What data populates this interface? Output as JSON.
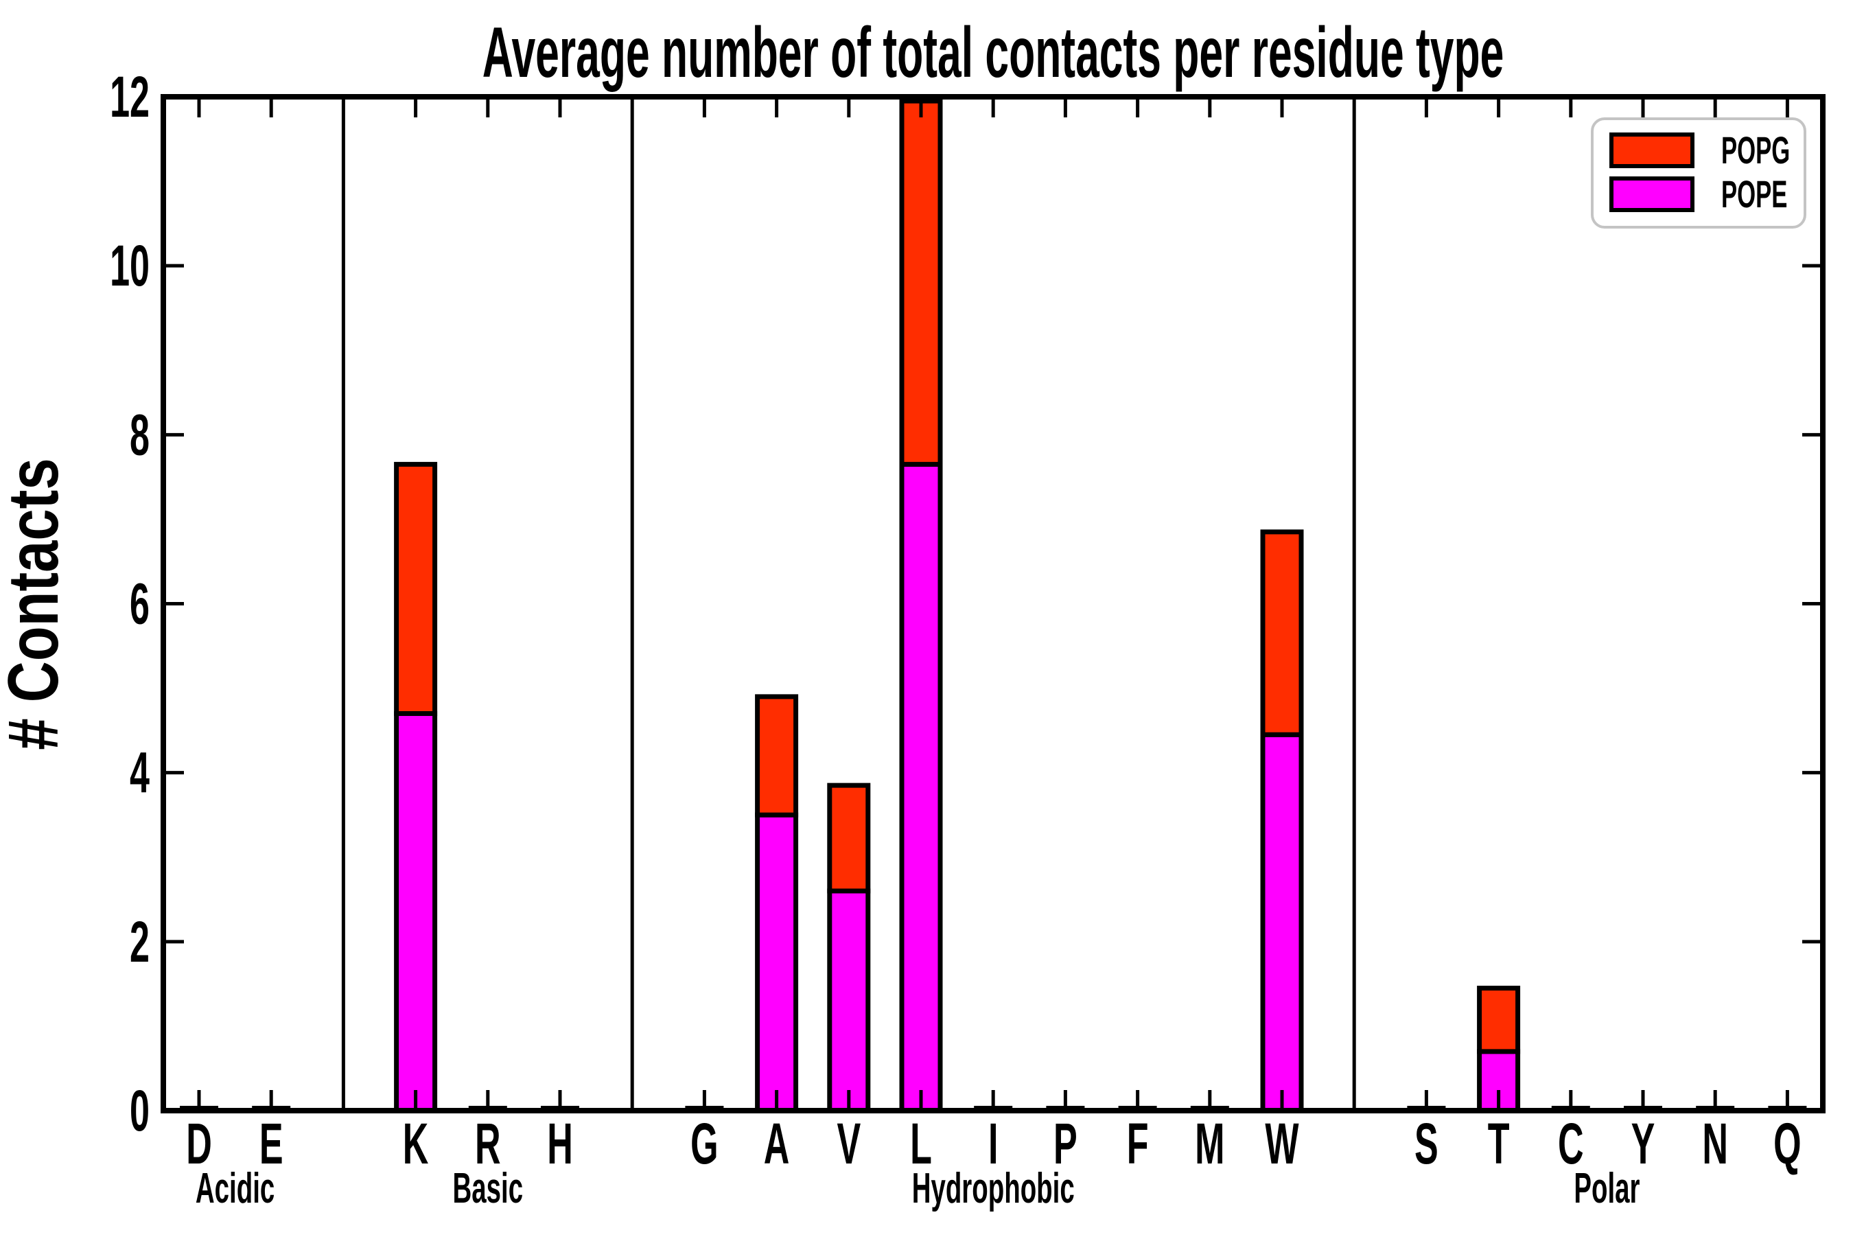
{
  "title": "Average number of total contacts per residue type",
  "ylabel": "# Contacts",
  "colors": {
    "popg": "#FF2D00",
    "pope": "#FF00FF",
    "bar_edge": "#000000",
    "axis": "#000000",
    "separator": "#000000",
    "legend_border": "#C4C4C4",
    "background": "#FFFFFF"
  },
  "legend": {
    "position": "upper right",
    "entries": [
      {
        "label": "POPG",
        "color_key": "popg"
      },
      {
        "label": "POPE",
        "color_key": "pope"
      }
    ]
  },
  "chart_data": {
    "type": "bar",
    "stacked": true,
    "title": "Average number of total contacts per residue type",
    "xlabel": "",
    "ylabel": "# Contacts",
    "ylim": [
      0,
      12
    ],
    "yticks": [
      0,
      2,
      4,
      6,
      8,
      10,
      12
    ],
    "grid": false,
    "legend_position": "upper right",
    "categories": [
      "D",
      "E",
      "K",
      "R",
      "H",
      "G",
      "A",
      "V",
      "L",
      "I",
      "P",
      "F",
      "M",
      "W",
      "S",
      "T",
      "C",
      "Y",
      "N",
      "Q"
    ],
    "groups": [
      {
        "label": "Acidic",
        "residues": [
          "D",
          "E"
        ]
      },
      {
        "label": "Basic",
        "residues": [
          "K",
          "R",
          "H"
        ]
      },
      {
        "label": "Hydrophobic",
        "residues": [
          "G",
          "A",
          "V",
          "L",
          "I",
          "P",
          "F",
          "M",
          "W"
        ]
      },
      {
        "label": "Polar",
        "residues": [
          "S",
          "T",
          "C",
          "Y",
          "N",
          "Q"
        ]
      }
    ],
    "series": [
      {
        "name": "POPE",
        "color_key": "pope",
        "values": [
          0,
          0,
          4.7,
          0,
          0,
          0,
          3.5,
          2.6,
          7.65,
          0,
          0,
          0,
          0,
          4.45,
          0,
          0.7,
          0,
          0,
          0,
          0
        ]
      },
      {
        "name": "POPG",
        "color_key": "popg",
        "values": [
          0,
          0,
          2.95,
          0,
          0,
          0,
          1.4,
          1.25,
          4.3,
          0,
          0,
          0,
          0,
          2.4,
          0,
          0.75,
          0,
          0,
          0,
          0
        ]
      }
    ],
    "totals": [
      0,
      0,
      7.65,
      0,
      0,
      0,
      4.9,
      3.85,
      11.95,
      0,
      0,
      0,
      0,
      6.85,
      0,
      1.45,
      0,
      0,
      0,
      0
    ]
  }
}
